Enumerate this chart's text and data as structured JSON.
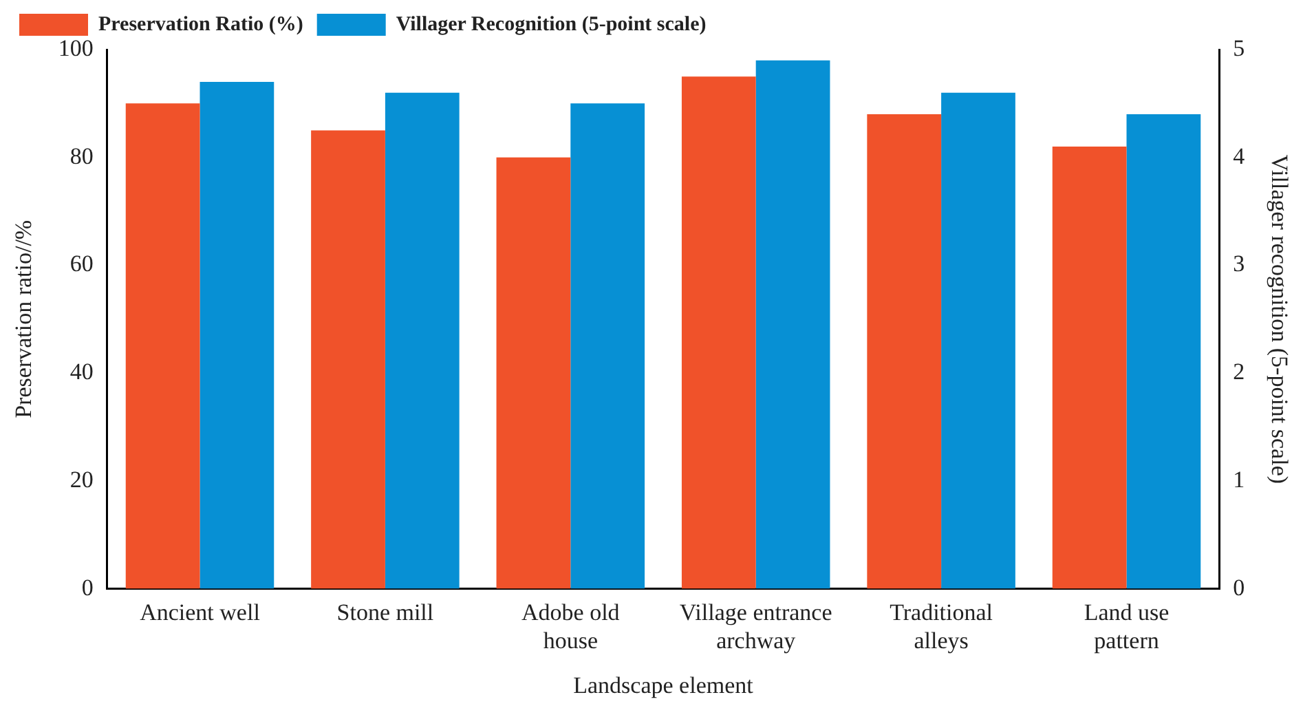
{
  "chart_data": {
    "type": "bar",
    "xlabel": "Landscape element",
    "ylabel": "Preservation ratio//%",
    "y2label": "Villager recognition (5-point scale)",
    "categories": [
      "Ancient well",
      "Stone mill",
      "Adobe old house",
      "Village entrance archway",
      "Traditional alleys",
      "Land use pattern"
    ],
    "series": [
      {
        "name": "Preservation Ratio (%)",
        "color": "#f0522a",
        "values": [
          90,
          85,
          80,
          95,
          88,
          82
        ]
      },
      {
        "name": "Villager Recognition (5-point scale)",
        "color": "#0790d4",
        "axis": "y2",
        "values": [
          4.7,
          4.6,
          4.5,
          4.9,
          4.6,
          4.4
        ]
      }
    ],
    "ylim": [
      0,
      100
    ],
    "yticks": [
      0,
      20,
      40,
      60,
      80,
      100
    ],
    "y2lim": [
      0,
      5
    ],
    "y2ticks": [
      0,
      1,
      2,
      3,
      4,
      5
    ],
    "grid": false,
    "legend": "top"
  }
}
